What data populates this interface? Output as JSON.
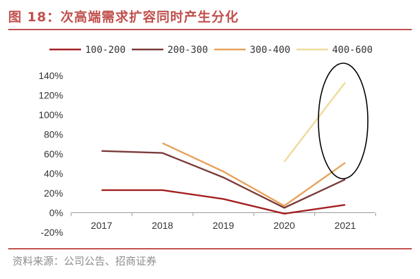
{
  "header": {
    "title": "图 18：次高端需求扩容同时产生分化"
  },
  "footer": {
    "source": "资料来源：公司公告、招商证券"
  },
  "colors": {
    "brand": "#c0504d",
    "series": [
      "#a31f20",
      "#7b3a39",
      "#e8a15a",
      "#eedb98"
    ],
    "axis": "#999999",
    "ellipse": "#000000"
  },
  "chart_data": {
    "type": "line",
    "title": "次高端需求扩容同时产生分化",
    "xlabel": "",
    "ylabel": "",
    "categories": [
      "2017",
      "2018",
      "2019",
      "2020",
      "2021"
    ],
    "ylim": [
      -0.2,
      1.4
    ],
    "yticks": [
      -0.2,
      0,
      0.2,
      0.4,
      0.6,
      0.8,
      1.0,
      1.2,
      1.4
    ],
    "ytick_labels": [
      "-20%",
      "0%",
      "20%",
      "40%",
      "60%",
      "80%",
      "100%",
      "120%",
      "140%"
    ],
    "grid": false,
    "legend_position": "top",
    "series": [
      {
        "name": "100-200",
        "values": [
          0.23,
          0.23,
          0.14,
          -0.01,
          0.08
        ]
      },
      {
        "name": "200-300",
        "values": [
          0.63,
          0.61,
          0.36,
          0.05,
          0.34
        ]
      },
      {
        "name": "300-400",
        "values": [
          null,
          0.71,
          0.42,
          0.07,
          0.51
        ]
      },
      {
        "name": "400-600",
        "values": [
          null,
          null,
          null,
          0.52,
          1.33
        ]
      }
    ],
    "annotation": {
      "type": "ellipse",
      "around": "2021 values"
    }
  }
}
